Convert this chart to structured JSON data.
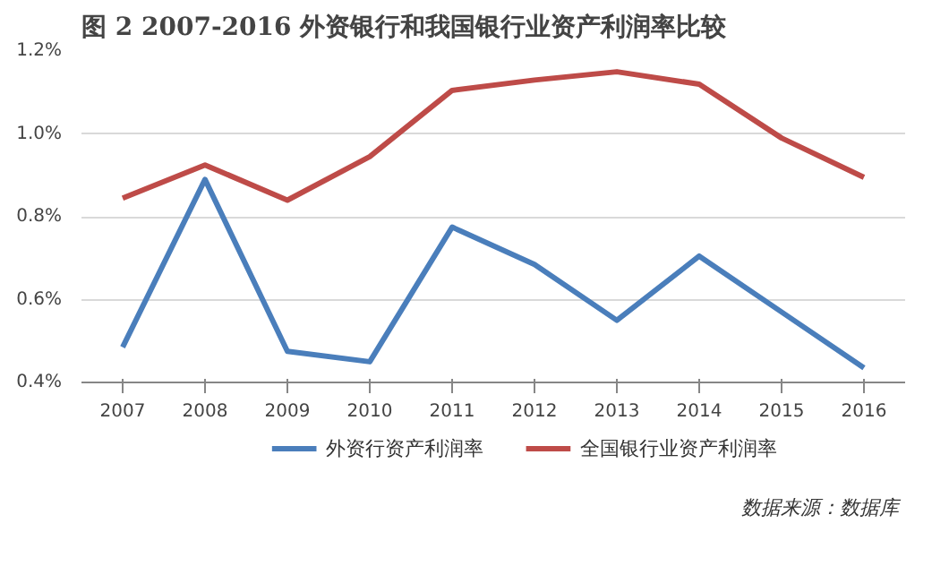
{
  "chart_data": {
    "type": "line",
    "title": "图 2 2007-2016 外资银行和我国银行业资产利润率比较",
    "categories": [
      "2007",
      "2008",
      "2009",
      "2010",
      "2011",
      "2012",
      "2013",
      "2014",
      "2015",
      "2016"
    ],
    "series": [
      {
        "name": "外资行资产利润率",
        "color": "#4a7ebb",
        "values": [
          0.485,
          0.89,
          0.475,
          0.45,
          0.775,
          0.685,
          0.55,
          0.705,
          0.57,
          0.435
        ]
      },
      {
        "name": "全国银行业资产利润率",
        "color": "#be4b48",
        "values": [
          0.845,
          0.925,
          0.84,
          0.945,
          1.105,
          1.13,
          1.15,
          1.12,
          0.99,
          0.895
        ]
      }
    ],
    "ylim": [
      0.4,
      1.2
    ],
    "yticks": [
      {
        "value": 0.4,
        "label": "0.4%"
      },
      {
        "value": 0.6,
        "label": "0.6%"
      },
      {
        "value": 0.8,
        "label": "0.8%"
      },
      {
        "value": 1.0,
        "label": "1.0%"
      },
      {
        "value": 1.2,
        "label": "1.2%"
      }
    ],
    "grid": "y",
    "legend": "bottom",
    "marker": "none",
    "line_style": "solid",
    "annotations": [
      "数据来源：数据库"
    ]
  }
}
